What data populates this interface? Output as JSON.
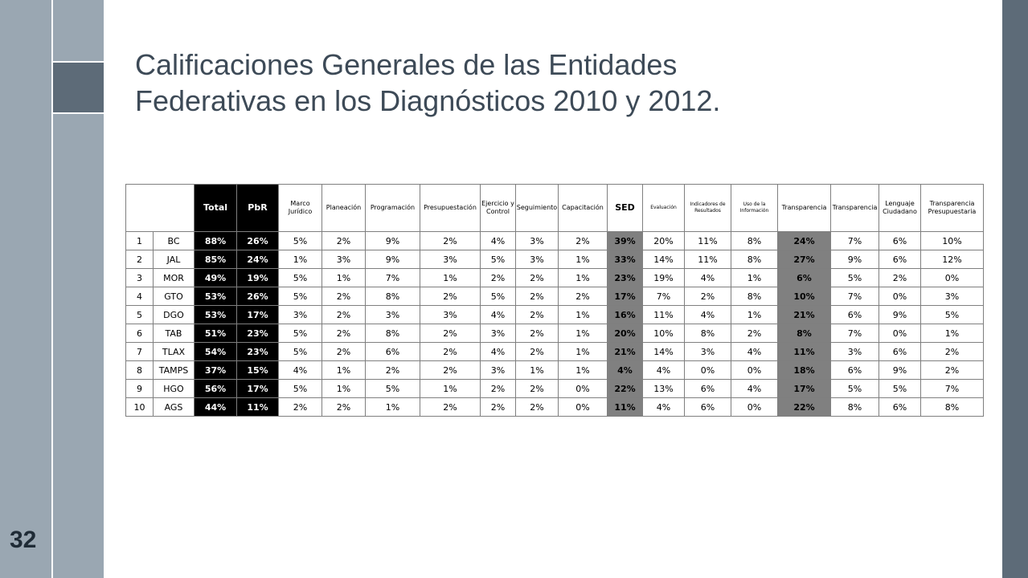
{
  "slide": {
    "title_line1": "Calificaciones Generales de las Entidades",
    "title_line2": "Federativas en los Diagnósticos 2010 y 2012.",
    "page_number": "32"
  },
  "table": {
    "headers": [
      "Total",
      "PbR",
      "Marco Jurídico",
      "Planeación",
      "Programación",
      "Presupuestación",
      "Ejercicio y Control",
      "Seguimiento",
      "Capacitación",
      "SED",
      "Evaluación",
      "Indicadores de Resultados",
      "Uso de la Información",
      "Transparencia",
      "Transparencia",
      "Lenguaje Ciudadano",
      "Transparencia Presupuestaria"
    ],
    "rows": [
      {
        "n": "1",
        "entity": "BC",
        "values": [
          "88%",
          "26%",
          "5%",
          "2%",
          "9%",
          "2%",
          "4%",
          "3%",
          "2%",
          "39%",
          "20%",
          "11%",
          "8%",
          "24%",
          "7%",
          "6%",
          "10%"
        ]
      },
      {
        "n": "2",
        "entity": "JAL",
        "values": [
          "85%",
          "24%",
          "1%",
          "3%",
          "9%",
          "3%",
          "5%",
          "3%",
          "1%",
          "33%",
          "14%",
          "11%",
          "8%",
          "27%",
          "9%",
          "6%",
          "12%"
        ]
      },
      {
        "n": "3",
        "entity": "MOR",
        "values": [
          "49%",
          "19%",
          "5%",
          "1%",
          "7%",
          "1%",
          "2%",
          "2%",
          "1%",
          "23%",
          "19%",
          "4%",
          "1%",
          "6%",
          "5%",
          "2%",
          "0%"
        ]
      },
      {
        "n": "4",
        "entity": "GTO",
        "values": [
          "53%",
          "26%",
          "5%",
          "2%",
          "8%",
          "2%",
          "5%",
          "2%",
          "2%",
          "17%",
          "7%",
          "2%",
          "8%",
          "10%",
          "7%",
          "0%",
          "3%"
        ]
      },
      {
        "n": "5",
        "entity": "DGO",
        "values": [
          "53%",
          "17%",
          "3%",
          "2%",
          "3%",
          "3%",
          "4%",
          "2%",
          "1%",
          "16%",
          "11%",
          "4%",
          "1%",
          "21%",
          "6%",
          "9%",
          "5%"
        ]
      },
      {
        "n": "6",
        "entity": "TAB",
        "values": [
          "51%",
          "23%",
          "5%",
          "2%",
          "8%",
          "2%",
          "3%",
          "2%",
          "1%",
          "20%",
          "10%",
          "8%",
          "2%",
          "8%",
          "7%",
          "0%",
          "1%"
        ]
      },
      {
        "n": "7",
        "entity": "TLAX",
        "values": [
          "54%",
          "23%",
          "5%",
          "2%",
          "6%",
          "2%",
          "4%",
          "2%",
          "1%",
          "21%",
          "14%",
          "3%",
          "4%",
          "11%",
          "3%",
          "6%",
          "2%"
        ]
      },
      {
        "n": "8",
        "entity": "TAMPS",
        "values": [
          "37%",
          "15%",
          "4%",
          "1%",
          "2%",
          "2%",
          "3%",
          "1%",
          "1%",
          "4%",
          "4%",
          "0%",
          "0%",
          "18%",
          "6%",
          "9%",
          "2%"
        ]
      },
      {
        "n": "9",
        "entity": "HGO",
        "values": [
          "56%",
          "17%",
          "5%",
          "1%",
          "5%",
          "1%",
          "2%",
          "2%",
          "0%",
          "22%",
          "13%",
          "6%",
          "4%",
          "17%",
          "5%",
          "5%",
          "7%"
        ]
      },
      {
        "n": "10",
        "entity": "AGS",
        "values": [
          "44%",
          "11%",
          "2%",
          "2%",
          "1%",
          "2%",
          "2%",
          "2%",
          "0%",
          "11%",
          "4%",
          "6%",
          "0%",
          "22%",
          "8%",
          "6%",
          "8%"
        ]
      }
    ]
  }
}
